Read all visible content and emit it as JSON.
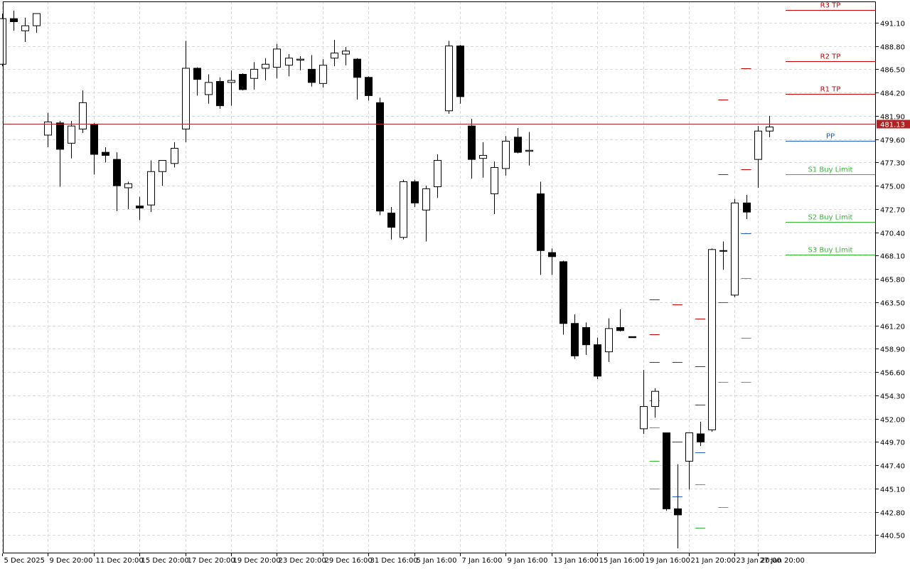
{
  "colors": {
    "background": "#ffffff",
    "grid": "#d9d9d9",
    "frame": "#000000",
    "bull_fill": "#ffffff",
    "bear_fill": "#000000",
    "candle_outline": "#000000",
    "current_price_line": "#b22222",
    "current_price_tag_bg": "#b22222",
    "current_price_tag_text": "#ffffff",
    "tp": "#cc0000",
    "pp": "#1f5fbf",
    "buy": "#33b833",
    "tick_pivot_red": "#cc0000",
    "tick_pivot_blue": "#1f5fbf",
    "tick_pivot_green": "#33b833"
  },
  "chart_data": {
    "type": "candlestick",
    "ylim": [
      438.7,
      493.2
    ],
    "y_ticks": [
      "491.10",
      "488.80",
      "486.50",
      "484.20",
      "481.90",
      "479.60",
      "477.30",
      "475.00",
      "472.70",
      "470.40",
      "468.10",
      "465.80",
      "463.50",
      "461.20",
      "458.90",
      "456.60",
      "454.30",
      "452.00",
      "449.70",
      "447.40",
      "445.10",
      "442.80",
      "440.50"
    ],
    "x_labels": [
      {
        "i": 0,
        "text": "5 Dec 2025"
      },
      {
        "i": 4,
        "text": "9 Dec 20:00"
      },
      {
        "i": 8,
        "text": "11 Dec 20:00"
      },
      {
        "i": 12,
        "text": "15 Dec 20:00"
      },
      {
        "i": 16,
        "text": "17 Dec 20:00"
      },
      {
        "i": 20,
        "text": "19 Dec 20:00"
      },
      {
        "i": 24,
        "text": "23 Dec 20:00"
      },
      {
        "i": 28,
        "text": "29 Dec 16:00"
      },
      {
        "i": 32,
        "text": "31 Dec 16:00"
      },
      {
        "i": 36,
        "text": "5 Jan 16:00"
      },
      {
        "i": 40,
        "text": "7 Jan 16:00"
      },
      {
        "i": 44,
        "text": "9 Jan 16:00"
      },
      {
        "i": 48,
        "text": "13 Jan 16:00"
      },
      {
        "i": 52,
        "text": "15 Jan 16:00"
      },
      {
        "i": 56,
        "text": "19 Jan 16:00"
      },
      {
        "i": 60,
        "text": "21 Jan 20:00"
      },
      {
        "i": 64,
        "text": "23 Jan 20:00"
      },
      {
        "i": 66,
        "text": "27 Jan 20:00"
      }
    ],
    "candles": [
      {
        "o": 487,
        "h": 492,
        "l": 486.8,
        "c": 491.5
      },
      {
        "o": 491.5,
        "h": 492.3,
        "l": 490.3,
        "c": 491.2
      },
      {
        "o": 490.3,
        "h": 491.6,
        "l": 489.2,
        "c": 490.8
      },
      {
        "o": 490.8,
        "h": 491.9,
        "l": 490.1,
        "c": 492
      },
      {
        "o": 480,
        "h": 482.2,
        "l": 478.8,
        "c": 481.3
      },
      {
        "o": 481.2,
        "h": 481.4,
        "l": 474.9,
        "c": 478.6
      },
      {
        "o": 479.2,
        "h": 481.4,
        "l": 477.7,
        "c": 480.9
      },
      {
        "o": 480.6,
        "h": 484.4,
        "l": 480.2,
        "c": 483.2
      },
      {
        "o": 481,
        "h": 481.2,
        "l": 476.1,
        "c": 478.1
      },
      {
        "o": 478.3,
        "h": 478.8,
        "l": 477.3,
        "c": 478
      },
      {
        "o": 477.6,
        "h": 478.3,
        "l": 472.5,
        "c": 475.0
      },
      {
        "o": 474.8,
        "h": 475.4,
        "l": 472.7,
        "c": 475.2
      },
      {
        "o": 473.0,
        "h": 473.9,
        "l": 471.6,
        "c": 472.8
      },
      {
        "o": 473.1,
        "h": 477.5,
        "l": 472.4,
        "c": 476.4
      },
      {
        "o": 476.4,
        "h": 477.5,
        "l": 475.0,
        "c": 477.5
      },
      {
        "o": 477.2,
        "h": 479.3,
        "l": 476.8,
        "c": 478.7
      },
      {
        "o": 480.6,
        "h": 489.3,
        "l": 479.3,
        "c": 486.6
      },
      {
        "o": 486.6,
        "h": 486.7,
        "l": 483.9,
        "c": 485.5
      },
      {
        "o": 484.0,
        "h": 486.0,
        "l": 483.1,
        "c": 485.2
      },
      {
        "o": 485.3,
        "h": 485.7,
        "l": 482.6,
        "c": 482.9
      },
      {
        "o": 485.2,
        "h": 486.4,
        "l": 482.9,
        "c": 485.4
      },
      {
        "o": 486.0,
        "h": 486.1,
        "l": 484.4,
        "c": 484.5
      },
      {
        "o": 485.6,
        "h": 487.2,
        "l": 484.5,
        "c": 486.5
      },
      {
        "o": 486.6,
        "h": 487.6,
        "l": 485.4,
        "c": 487.0
      },
      {
        "o": 486.7,
        "h": 489.0,
        "l": 485.6,
        "c": 488.5
      },
      {
        "o": 486.9,
        "h": 488.0,
        "l": 485.8,
        "c": 487.6
      },
      {
        "o": 487.4,
        "h": 487.8,
        "l": 486.4,
        "c": 487.5
      },
      {
        "o": 486.5,
        "h": 487.9,
        "l": 484.8,
        "c": 485.2
      },
      {
        "o": 485.1,
        "h": 487.5,
        "l": 484.7,
        "c": 486.9
      },
      {
        "o": 487.6,
        "h": 489.4,
        "l": 486.8,
        "c": 488.1
      },
      {
        "o": 488.0,
        "h": 488.7,
        "l": 486.9,
        "c": 488.3
      },
      {
        "o": 487.5,
        "h": 487.6,
        "l": 483.5,
        "c": 485.7
      },
      {
        "o": 485.7,
        "h": 485.8,
        "l": 483.4,
        "c": 483.9
      },
      {
        "o": 483.2,
        "h": 483.7,
        "l": 472.1,
        "c": 472.5
      },
      {
        "o": 472.3,
        "h": 472.9,
        "l": 469.7,
        "c": 470.9
      },
      {
        "o": 469.9,
        "h": 475.6,
        "l": 469.7,
        "c": 475.4
      },
      {
        "o": 475.4,
        "h": 475.6,
        "l": 472.9,
        "c": 473.3
      },
      {
        "o": 472.6,
        "h": 475.0,
        "l": 469.5,
        "c": 474.7
      },
      {
        "o": 474.9,
        "h": 478.1,
        "l": 473.8,
        "c": 477.5
      },
      {
        "o": 482.4,
        "h": 489.3,
        "l": 482.1,
        "c": 488.8
      },
      {
        "o": 488.8,
        "h": 488.9,
        "l": 483.1,
        "c": 483.8
      },
      {
        "o": 480.9,
        "h": 481.6,
        "l": 475.7,
        "c": 477.6
      },
      {
        "o": 477.7,
        "h": 479.3,
        "l": 475.8,
        "c": 478.0
      },
      {
        "o": 474.2,
        "h": 477.4,
        "l": 472.2,
        "c": 476.8
      },
      {
        "o": 476.7,
        "h": 479.9,
        "l": 476.0,
        "c": 479.4
      },
      {
        "o": 479.8,
        "h": 480.7,
        "l": 478.2,
        "c": 478.3
      },
      {
        "o": 478.4,
        "h": 480.3,
        "l": 477.0,
        "c": 478.5
      },
      {
        "o": 474.2,
        "h": 475.4,
        "l": 466.2,
        "c": 468.6
      },
      {
        "o": 468.4,
        "h": 468.8,
        "l": 466.2,
        "c": 468.0
      },
      {
        "o": 467.5,
        "h": 467.6,
        "l": 460.3,
        "c": 461.4
      },
      {
        "o": 461.4,
        "h": 462.3,
        "l": 457.9,
        "c": 458.2
      },
      {
        "o": 461.0,
        "h": 461.5,
        "l": 458.3,
        "c": 459.3
      },
      {
        "o": 459.3,
        "h": 460.0,
        "l": 455.9,
        "c": 456.2
      },
      {
        "o": 458.6,
        "h": 461.9,
        "l": 457.6,
        "c": 460.9
      },
      {
        "o": 461.0,
        "h": 462.8,
        "l": 460.6,
        "c": 460.7
      },
      {
        "o": 460.1,
        "h": 460.1,
        "l": 460.0,
        "c": 460.0
      },
      {
        "o": 451.0,
        "h": 456.8,
        "l": 450.5,
        "c": 453.2
      },
      {
        "o": 453.2,
        "h": 455.0,
        "l": 452.1,
        "c": 454.7
      },
      {
        "o": 450.6,
        "h": 450.6,
        "l": 442.9,
        "c": 443.1
      },
      {
        "o": 443.1,
        "h": 447.5,
        "l": 439.2,
        "c": 442.5
      },
      {
        "o": 447.8,
        "h": 450.6,
        "l": 445.0,
        "c": 450.6
      },
      {
        "o": 450.5,
        "h": 451.7,
        "l": 449.3,
        "c": 449.7
      },
      {
        "o": 450.9,
        "h": 468.8,
        "l": 450.7,
        "c": 468.7
      },
      {
        "o": 468.6,
        "h": 469.5,
        "l": 466.7,
        "c": 468.6
      },
      {
        "o": 464.2,
        "h": 473.7,
        "l": 464.0,
        "c": 473.3
      },
      {
        "o": 473.3,
        "h": 474.1,
        "l": 471.7,
        "c": 472.4
      },
      {
        "o": 477.6,
        "h": 480.9,
        "l": 474.8,
        "c": 480.4
      },
      {
        "o": 480.4,
        "h": 481.9,
        "l": 479.8,
        "c": 480.8
      }
    ],
    "current_price": {
      "value": 481.13,
      "label": "481.13"
    },
    "levels": [
      {
        "name": "R3 TP",
        "value": 492.35,
        "color": "tp"
      },
      {
        "name": "R2 TP",
        "value": 487.3,
        "color": "tp"
      },
      {
        "name": "R1 TP",
        "value": 484.1,
        "color": "tp"
      },
      {
        "name": "PP",
        "value": 479.4,
        "color": "pp"
      },
      {
        "name": "S1 Buy Limit",
        "value": 476.1,
        "color": "buy"
      },
      {
        "name": "S2 Buy Limit",
        "value": 471.4,
        "color": "buy"
      },
      {
        "name": "S3 Buy Limit",
        "value": 468.2,
        "color": "buy"
      }
    ],
    "pivot_ticks": [
      {
        "i": 57,
        "values": [
          {
            "v": 463.8,
            "c": "tick_pivot_red"
          },
          {
            "v": 460.3,
            "c": "tick_pivot_red"
          },
          {
            "v": 457.6,
            "c": "tick_pivot_red"
          },
          {
            "v": 453.8,
            "c": "tick_pivot_blue"
          },
          {
            "v": 451.1,
            "c": "tick_pivot_green"
          },
          {
            "v": 447.8,
            "c": "tick_pivot_green"
          },
          {
            "v": 445.1,
            "c": "tick_pivot_green"
          }
        ]
      },
      {
        "i": 59,
        "values": [
          {
            "v": 463.3,
            "c": "tick_pivot_red"
          },
          {
            "v": 457.6,
            "c": "tick_pivot_red"
          },
          {
            "v": 449.7,
            "c": "tick_pivot_red"
          },
          {
            "v": 444.3,
            "c": "tick_pivot_blue"
          }
        ]
      },
      {
        "i": 61,
        "values": [
          {
            "v": 461.9,
            "c": "tick_pivot_red"
          },
          {
            "v": 457.2,
            "c": "tick_pivot_red"
          },
          {
            "v": 453.4,
            "c": "tick_pivot_red"
          },
          {
            "v": 448.7,
            "c": "tick_pivot_blue"
          },
          {
            "v": 445.5,
            "c": "tick_pivot_green"
          },
          {
            "v": 441.2,
            "c": "tick_pivot_green"
          }
        ]
      },
      {
        "i": 63,
        "values": [
          {
            "v": 483.5,
            "c": "tick_pivot_red"
          },
          {
            "v": 476.1,
            "c": "tick_pivot_red"
          },
          {
            "v": 463.5,
            "c": "tick_pivot_blue"
          },
          {
            "v": 455.6,
            "c": "tick_pivot_green"
          },
          {
            "v": 443.3,
            "c": "tick_pivot_green"
          }
        ]
      },
      {
        "i": 65,
        "values": [
          {
            "v": 486.6,
            "c": "tick_pivot_red"
          },
          {
            "v": 476.6,
            "c": "tick_pivot_red"
          },
          {
            "v": 470.3,
            "c": "tick_pivot_blue"
          },
          {
            "v": 465.9,
            "c": "tick_pivot_green"
          },
          {
            "v": 460.0,
            "c": "tick_pivot_green"
          },
          {
            "v": 455.6,
            "c": "tick_pivot_green"
          }
        ]
      }
    ]
  }
}
